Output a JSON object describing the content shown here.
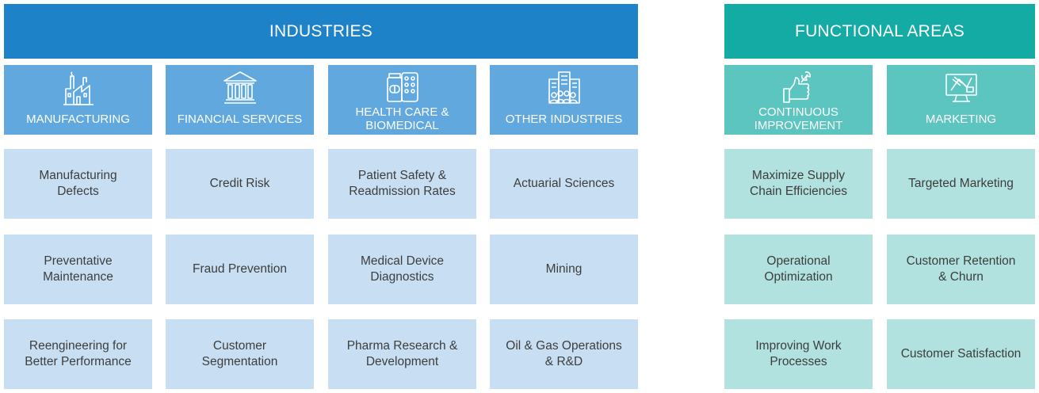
{
  "industries": {
    "title": "INDUSTRIES",
    "categories": [
      {
        "label": "MANUFACTURING",
        "icon": "factory-icon"
      },
      {
        "label": "FINANCIAL SERVICES",
        "icon": "bank-icon"
      },
      {
        "label": "HEALTH CARE &\nBIOMEDICAL",
        "icon": "medicine-icon"
      },
      {
        "label": "OTHER INDUSTRIES",
        "icon": "buildings-icon"
      }
    ],
    "rows": [
      [
        "Manufacturing\nDefects",
        "Credit Risk",
        "Patient Safety &\nReadmission Rates",
        "Actuarial Sciences"
      ],
      [
        "Preventative\nMaintenance",
        "Fraud Prevention",
        "Medical Device\nDiagnostics",
        "Mining"
      ],
      [
        "Reengineering for\nBetter Performance",
        "Customer\nSegmentation",
        "Pharma Research &\nDevelopment",
        "Oil & Gas Operations\n& R&D"
      ]
    ]
  },
  "functional_areas": {
    "title": "FUNCTIONAL AREAS",
    "categories": [
      {
        "label": "CONTINUOUS\nIMPROVEMENT",
        "icon": "thumbs-up-wrench-icon"
      },
      {
        "label": "MARKETING",
        "icon": "marketing-monitor-icon"
      }
    ],
    "rows": [
      [
        "Maximize Supply\nChain Efficiencies",
        "Targeted Marketing"
      ],
      [
        "Operational\nOptimization",
        "Customer Retention\n& Churn"
      ],
      [
        "Improving Work\nProcesses",
        "Customer Satisfaction"
      ]
    ]
  },
  "colors": {
    "industries_banner": "#1e82c9",
    "industries_category": "#61a8df",
    "industries_cell": "#c8dff3",
    "functional_banner": "#14aba4",
    "functional_category": "#5cc5c0",
    "functional_cell": "#b2e2e0",
    "cell_text": "#3d3d3d"
  }
}
